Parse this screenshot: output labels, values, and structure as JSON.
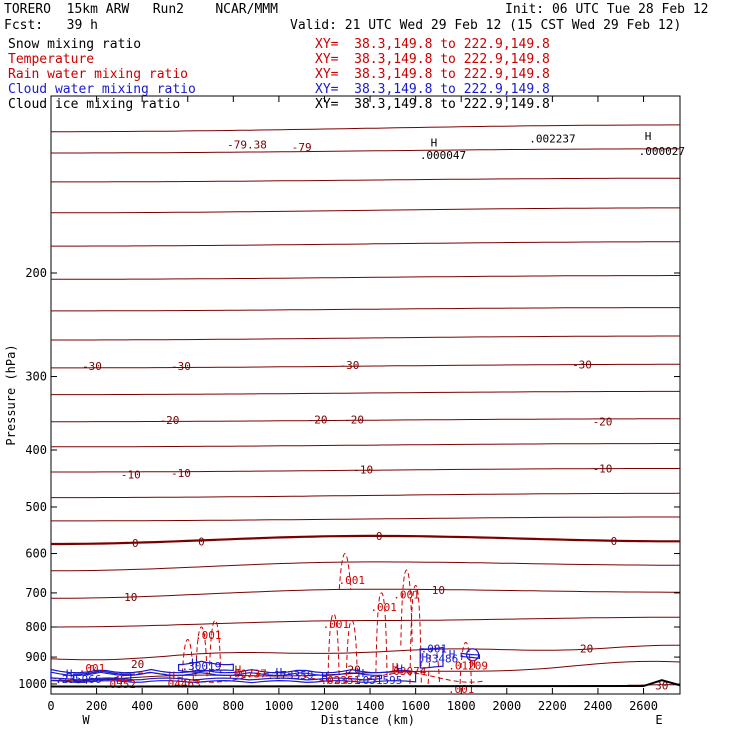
{
  "header": {
    "title_left": "TORERO  15km ARW   Run2    NCAR/MMM",
    "init": "Init: 06 UTC Tue 28 Feb 12",
    "fcst": "Fcst:   39 h",
    "valid": "Valid: 21 UTC Wed 29 Feb 12 (15 CST Wed 29 Feb 12)",
    "legend": [
      {
        "label": "Snow mixing ratio",
        "xy": "XY=  38.3,149.8 to 222.9,149.8",
        "color": "#000000"
      },
      {
        "label": "Temperature",
        "xy": "XY=  38.3,149.8 to 222.9,149.8",
        "color": "#cc0000"
      },
      {
        "label": "Rain water mixing ratio",
        "xy": "XY=  38.3,149.8 to 222.9,149.8",
        "color": "#cc0000"
      },
      {
        "label": "Cloud water mixing ratio",
        "xy": "XY=  38.3,149.8 to 222.9,149.8",
        "color": "#1a1acc"
      },
      {
        "label": "Cloud ice mixing ratio",
        "xy": "XY=  38.3,149.8 to 222.9,149.8",
        "color": "#000000"
      }
    ]
  },
  "chart_data": {
    "type": "line",
    "xlabel": "Distance (km)",
    "ylabel": "Pressure (hPa)",
    "xlim": [
      0,
      2760
    ],
    "ylim": [
      1040,
      100
    ],
    "y_scale": "log",
    "x_ticks": [
      0,
      200,
      400,
      600,
      800,
      1000,
      1200,
      1400,
      1600,
      1800,
      2000,
      2200,
      2400,
      2600
    ],
    "y_ticks": [
      200,
      300,
      400,
      500,
      600,
      700,
      800,
      900,
      1000
    ],
    "x_end_labels": {
      "left": "W",
      "right": "E"
    },
    "colors": {
      "temperature": "#7a0000",
      "rain": "#cc0000",
      "cloud_water": "#1a1acc",
      "ground": "#000000"
    },
    "temperature_isotherms": [
      {
        "label": "",
        "x": [
          0,
          2760
        ],
        "p": [
          115,
          112
        ]
      },
      {
        "label": "",
        "x": [
          0,
          2760
        ],
        "p": [
          125,
          123
        ]
      },
      {
        "label": "",
        "x": [
          0,
          2760
        ],
        "p": [
          140,
          138
        ]
      },
      {
        "label": "",
        "x": [
          0,
          2760
        ],
        "p": [
          158,
          155
        ]
      },
      {
        "label": "",
        "x": [
          0,
          2760
        ],
        "p": [
          180,
          177
        ]
      },
      {
        "label": "",
        "x": [
          0,
          2760
        ],
        "p": [
          205,
          202
        ]
      },
      {
        "label": "",
        "x": [
          0,
          2760
        ],
        "p": [
          232,
          229
        ]
      },
      {
        "label": "",
        "x": [
          0,
          2760
        ],
        "p": [
          260,
          256
        ]
      },
      {
        "label": "-30",
        "x": [
          0,
          2760
        ],
        "p": [
          290,
          286
        ]
      },
      {
        "label": "",
        "x": [
          0,
          2760
        ],
        "p": [
          322,
          318
        ]
      },
      {
        "label": "-20",
        "x": [
          0,
          2760
        ],
        "p": [
          358,
          354
        ]
      },
      {
        "label": "",
        "x": [
          0,
          2760
        ],
        "p": [
          395,
          390
        ]
      },
      {
        "label": "-10",
        "x": [
          0,
          2760
        ],
        "p": [
          436,
          430
        ]
      },
      {
        "label": "",
        "x": [
          0,
          2760
        ],
        "p": [
          482,
          474
        ]
      },
      {
        "label": "",
        "x": [
          0,
          2760
        ],
        "p": [
          528,
          520
        ]
      },
      {
        "label": "0",
        "x": [
          0,
          1400,
          2760
        ],
        "p": [
          578,
          560,
          572
        ]
      },
      {
        "label": "",
        "x": [
          0,
          1400,
          2760
        ],
        "p": [
          642,
          620,
          628
        ]
      },
      {
        "label": "10",
        "x": [
          0,
          1400,
          2760
        ],
        "p": [
          715,
          690,
          698
        ]
      },
      {
        "label": "",
        "x": [
          0,
          1400,
          2760
        ],
        "p": [
          800,
          780,
          770
        ]
      },
      {
        "label": "20",
        "x": [
          0,
          1400,
          2760
        ],
        "p": [
          905,
          880,
          865
        ]
      },
      {
        "label": "",
        "x": [
          0,
          1400,
          2760
        ],
        "p": [
          980,
          960,
          920
        ]
      },
      {
        "label": "30",
        "x": [
          2500,
          2760
        ],
        "p": [
          1010,
          1000
        ]
      }
    ],
    "isotherm_labels": [
      {
        "text": "-79.38",
        "x": 860,
        "p": 121
      },
      {
        "text": "-79",
        "x": 1100,
        "p": 122
      },
      {
        "text": "-30",
        "x": 180,
        "p": 288
      },
      {
        "text": "-30",
        "x": 570,
        "p": 288
      },
      {
        "text": "-30",
        "x": 1310,
        "p": 287
      },
      {
        "text": "-30",
        "x": 2330,
        "p": 286
      },
      {
        "text": "-20",
        "x": 520,
        "p": 356
      },
      {
        "text": "-20",
        "x": 1170,
        "p": 355
      },
      {
        "text": "-20",
        "x": 1330,
        "p": 355
      },
      {
        "text": "-20",
        "x": 2420,
        "p": 358
      },
      {
        "text": "-10",
        "x": 350,
        "p": 440
      },
      {
        "text": "-10",
        "x": 570,
        "p": 438
      },
      {
        "text": "-10",
        "x": 1370,
        "p": 432
      },
      {
        "text": "-10",
        "x": 2420,
        "p": 430
      },
      {
        "text": "0",
        "x": 370,
        "p": 576
      },
      {
        "text": "0",
        "x": 660,
        "p": 572
      },
      {
        "text": "0",
        "x": 1440,
        "p": 560
      },
      {
        "text": "0",
        "x": 2470,
        "p": 571
      },
      {
        "text": "10",
        "x": 350,
        "p": 712
      },
      {
        "text": "10",
        "x": 1700,
        "p": 692
      },
      {
        "text": "20",
        "x": 380,
        "p": 925
      },
      {
        "text": "20",
        "x": 1330,
        "p": 945
      },
      {
        "text": "20",
        "x": 2350,
        "p": 870
      },
      {
        "text": "30",
        "x": 2680,
        "p": 1005
      }
    ],
    "rain_labels": [
      {
        "text": ".001",
        "x": 1320,
        "p": 665
      },
      {
        "text": ".001",
        "x": 1560,
        "p": 705
      },
      {
        "text": ".001",
        "x": 1460,
        "p": 740
      },
      {
        "text": ".001",
        "x": 1250,
        "p": 790
      },
      {
        "text": ".001",
        "x": 690,
        "p": 825
      },
      {
        "text": ".001",
        "x": 180,
        "p": 940
      },
      {
        "text": ".0352",
        "x": 300,
        "p": 1000
      },
      {
        "text": ".04463",
        "x": 570,
        "p": 998
      },
      {
        "text": ".00737",
        "x": 860,
        "p": 960
      },
      {
        "text": ".02351",
        "x": 1270,
        "p": 985
      },
      {
        "text": ".03074",
        "x": 1560,
        "p": 950
      },
      {
        "text": ".01209",
        "x": 1830,
        "p": 930
      },
      {
        "text": ".001",
        "x": 1800,
        "p": 1020
      }
    ],
    "cloud_water_labels": [
      {
        "text": ".001",
        "x": 1680,
        "p": 870
      },
      {
        "text": ".33486",
        "x": 1700,
        "p": 905
      },
      {
        "text": ".30019",
        "x": 660,
        "p": 932
      },
      {
        "text": ".173359",
        "x": 1050,
        "p": 965
      },
      {
        "text": ".051595",
        "x": 1440,
        "p": 985
      },
      {
        "text": ".235966",
        "x": 120,
        "p": 980
      }
    ],
    "highs": [
      {
        "text": "H",
        "x": 630,
        "p": 920
      },
      {
        "text": "H",
        "x": 1640,
        "p": 900
      },
      {
        "text": "H",
        "x": 1760,
        "p": 890
      },
      {
        "text": "H",
        "x": 80,
        "p": 960
      },
      {
        "text": "H",
        "x": 1000,
        "p": 955
      },
      {
        "text": "H",
        "x": 1360,
        "p": 958
      },
      {
        "text": "H",
        "x": 1530,
        "p": 942
      },
      {
        "text": "H",
        "x": 1200,
        "p": 970
      }
    ],
    "rain_highs": [
      {
        "text": "H",
        "x": 530,
        "p": 968
      },
      {
        "text": "H",
        "x": 820,
        "p": 945
      },
      {
        "text": "H",
        "x": 300,
        "p": 985
      },
      {
        "text": "H",
        "x": 1200,
        "p": 972
      },
      {
        "text": "H",
        "x": 1510,
        "p": 935
      },
      {
        "text": "H",
        "x": 1850,
        "p": 925
      }
    ],
    "top_labels": [
      {
        "text": "H",
        "x": 1680,
        "p": 120
      },
      {
        "text": ".000047",
        "x": 1720,
        "p": 126
      },
      {
        "text": ".002237",
        "x": 2200,
        "p": 118
      },
      {
        "text": "H",
        "x": 2620,
        "p": 117
      },
      {
        "text": ".000027",
        "x": 2680,
        "p": 124
      }
    ]
  }
}
